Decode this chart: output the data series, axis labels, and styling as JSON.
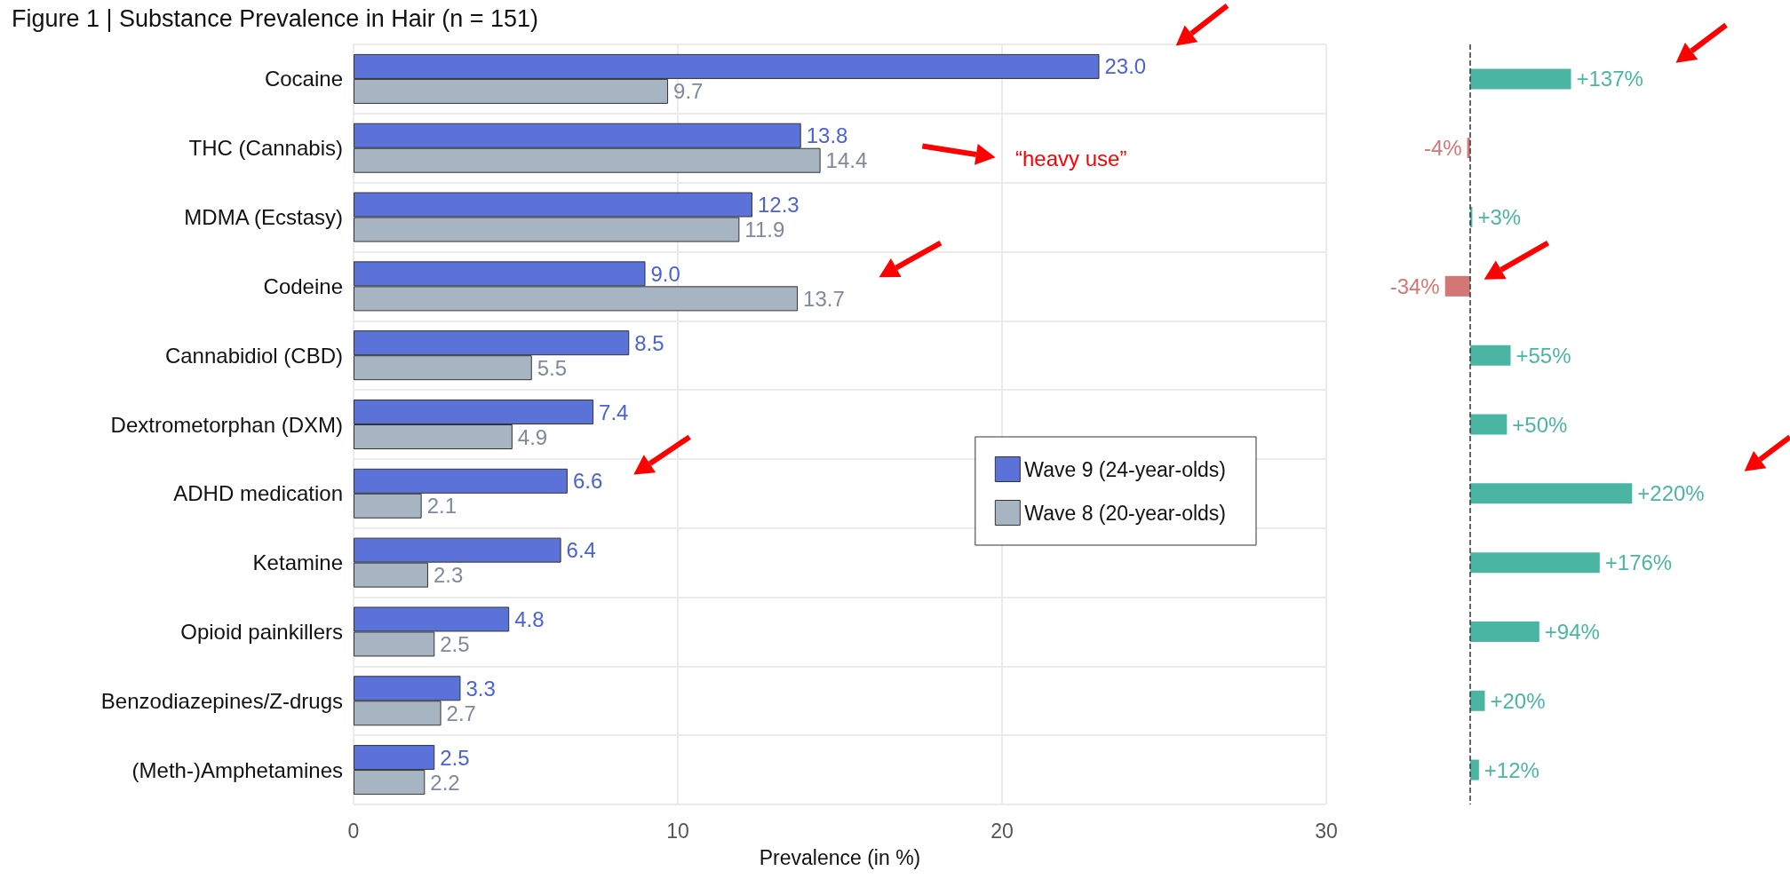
{
  "chart_data": [
    {
      "type": "bar",
      "orientation": "horizontal",
      "title": "Figure 1 | Substance Prevalence in Hair (n = 151)",
      "xlabel": "Prevalence (in %)",
      "categories": [
        "Cocaine",
        "THC (Cannabis)",
        "MDMA (Ecstasy)",
        "Codeine",
        "Cannabidiol (CBD)",
        "Dextrometorphan (DXM)",
        "ADHD medication",
        "Ketamine",
        "Opioid painkillers",
        "Benzodiazepines/Z-drugs",
        "(Meth-)Amphetamines"
      ],
      "series": [
        {
          "name": "Wave 9 (24-year-olds)",
          "color": "#5b72d9",
          "values": [
            23.0,
            13.8,
            12.3,
            9.0,
            8.5,
            7.4,
            6.6,
            6.4,
            4.8,
            3.3,
            2.5
          ],
          "value_labels": [
            "23.0",
            "13.8",
            "12.3",
            "9.0",
            "8.5",
            "7.4",
            "6.6",
            "6.4",
            "4.8",
            "3.3",
            "2.5"
          ]
        },
        {
          "name": "Wave 8 (20-year-olds)",
          "color": "#a7b4c2",
          "values": [
            9.7,
            14.4,
            11.9,
            13.7,
            5.5,
            4.9,
            2.1,
            2.3,
            2.5,
            2.7,
            2.2
          ],
          "value_labels": [
            "9.7",
            "14.4",
            "11.9",
            "13.7",
            "5.5",
            "4.9",
            "2.1",
            "2.3",
            "2.5",
            "2.7",
            "2.2"
          ]
        }
      ],
      "xlim": [
        0,
        30
      ],
      "xticks": [
        0,
        10,
        20,
        30
      ],
      "grid": true,
      "legend": "right",
      "annotations": [
        "“heavy use”"
      ]
    },
    {
      "type": "bar",
      "orientation": "horizontal",
      "categories": [
        null,
        null,
        null,
        null,
        null,
        null,
        null,
        null,
        null,
        null,
        null
      ],
      "values": [
        137,
        -4,
        3,
        -34,
        55,
        50,
        220,
        176,
        94,
        20,
        12
      ],
      "colors": [
        "#4bb5a4",
        "#d27676",
        "#4bb5a4",
        "#d27676",
        "#4bb5a4",
        "#4bb5a4",
        "#4bb5a4",
        "#4bb5a4",
        "#4bb5a4",
        "#4bb5a4",
        "#4bb5a4"
      ],
      "value_labels": [
        "+137%",
        "-4%",
        "+3%",
        "-34%",
        "+55%",
        "+50%",
        "+220%",
        "+176%",
        "+94%",
        "+20%",
        "+12%"
      ],
      "grid": false,
      "ref_lines": [
        {
          "axis": "x",
          "value": 0,
          "color": "#333333",
          "line_style": "dashed"
        }
      ]
    }
  ]
}
